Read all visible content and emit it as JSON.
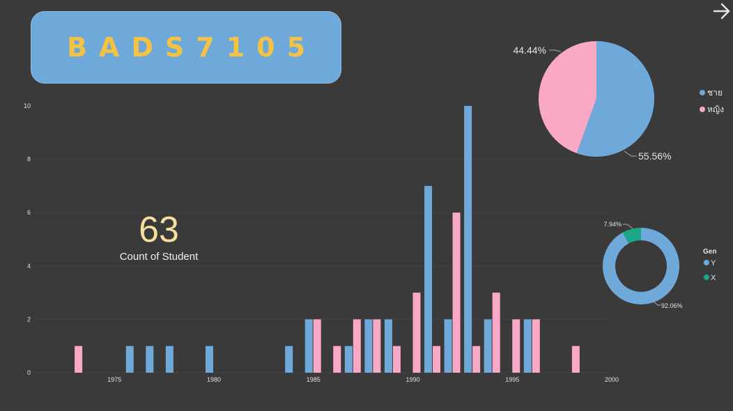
{
  "title": "BADS7105",
  "kpi": {
    "value": "63",
    "label": "Count of Student"
  },
  "colors": {
    "male": "#6fa9da",
    "female": "#f9a8c6",
    "gen_y": "#6fa9da",
    "gen_x": "#1aa889",
    "title": "#f5c242",
    "background": "#3a3a3a"
  },
  "chart_data": [
    {
      "type": "bar",
      "x": [
        1973,
        1976,
        1977,
        1978,
        1980,
        1984,
        1985,
        1986,
        1987,
        1988,
        1989,
        1990,
        1991,
        1992,
        1993,
        1994,
        1995,
        1996,
        1998
      ],
      "series": [
        {
          "values": [
            0,
            1,
            1,
            1,
            1,
            1,
            2,
            0,
            1,
            2,
            2,
            0,
            7,
            2,
            10,
            2,
            0,
            2,
            0
          ],
          "color": "#6fa9da"
        },
        {
          "values": [
            1,
            0,
            0,
            0,
            0,
            0,
            2,
            1,
            2,
            2,
            1,
            3,
            1,
            6,
            1,
            3,
            2,
            2,
            1
          ],
          "color": "#f9a8c6"
        }
      ],
      "xticks": [
        "1975",
        "1980",
        "1985",
        "1990",
        "1995",
        "2000"
      ],
      "yticks": [
        "0",
        "2",
        "4",
        "6",
        "8",
        "10"
      ],
      "xlim": [
        1971,
        2000
      ],
      "ylim": [
        0,
        10
      ],
      "grid": true
    },
    {
      "type": "pie",
      "labels": [
        "ชาย",
        "หญิง"
      ],
      "values": [
        55.56,
        44.44
      ],
      "data_labels": [
        "55.56%",
        "44.44%"
      ],
      "colors": [
        "#6fa9da",
        "#f9a8c6"
      ],
      "legend_position": "right"
    },
    {
      "type": "pie",
      "donut": true,
      "legend_title": "Gen",
      "labels": [
        "Y",
        "X"
      ],
      "values": [
        92.06,
        7.94
      ],
      "data_labels": [
        "92.06%",
        "7.94%"
      ],
      "colors": [
        "#6fa9da",
        "#1aa889"
      ],
      "legend_position": "right"
    }
  ]
}
